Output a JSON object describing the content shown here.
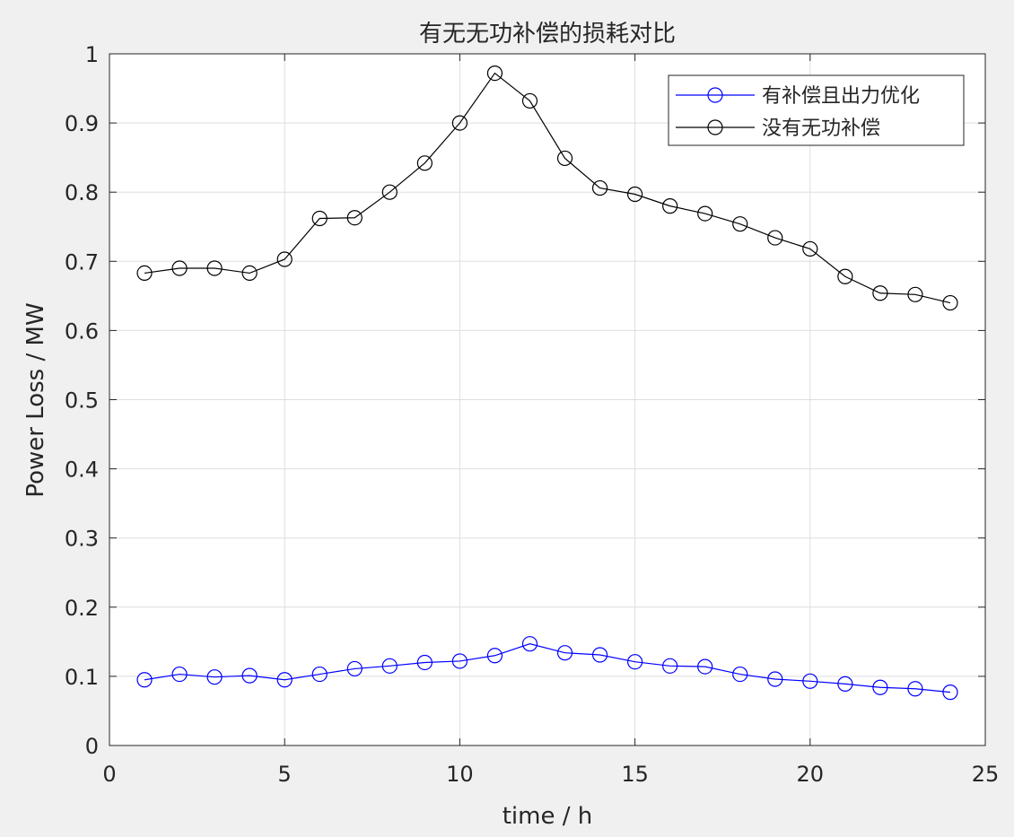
{
  "chart_data": {
    "type": "line",
    "title": "有无无功补偿的损耗对比",
    "xlabel": "time / h",
    "ylabel": "Power Loss / MW",
    "xlim": [
      0,
      25
    ],
    "ylim": [
      0,
      1
    ],
    "xticks": [
      0,
      5,
      10,
      15,
      20,
      25
    ],
    "yticks": [
      0,
      0.1,
      0.2,
      0.3,
      0.4,
      0.5,
      0.6,
      0.7,
      0.8,
      0.9,
      1
    ],
    "grid": true,
    "legend_position": "top-right",
    "x": [
      1,
      2,
      3,
      4,
      5,
      6,
      7,
      8,
      9,
      10,
      11,
      12,
      13,
      14,
      15,
      16,
      17,
      18,
      19,
      20,
      21,
      22,
      23,
      24
    ],
    "series": [
      {
        "name": "有补偿且出力优化",
        "color": "#0000ff",
        "marker": "circle",
        "values": [
          0.095,
          0.103,
          0.099,
          0.101,
          0.095,
          0.103,
          0.111,
          0.115,
          0.12,
          0.122,
          0.13,
          0.147,
          0.134,
          0.131,
          0.121,
          0.115,
          0.114,
          0.103,
          0.096,
          0.093,
          0.089,
          0.084,
          0.082,
          0.077
        ]
      },
      {
        "name": "没有无功补偿",
        "color": "#000000",
        "marker": "circle",
        "values": [
          0.683,
          0.69,
          0.69,
          0.683,
          0.703,
          0.762,
          0.763,
          0.8,
          0.842,
          0.9,
          0.972,
          0.932,
          0.849,
          0.806,
          0.797,
          0.78,
          0.769,
          0.754,
          0.734,
          0.718,
          0.678,
          0.654,
          0.652,
          0.64
        ]
      }
    ]
  }
}
